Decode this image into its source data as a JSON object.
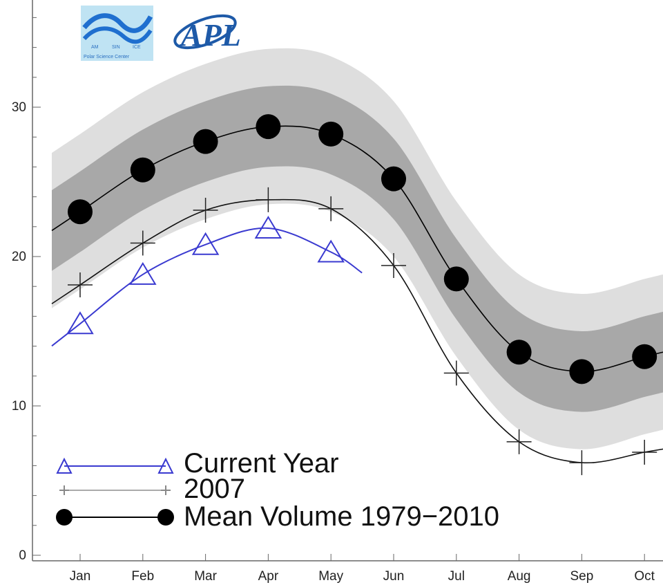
{
  "chart_data": {
    "type": "line",
    "categories": [
      "Jan",
      "Feb",
      "Mar",
      "Apr",
      "May",
      "Jun",
      "Jul",
      "Aug",
      "Sep",
      "Oct"
    ],
    "y_ticks": [
      0,
      10,
      20,
      30
    ],
    "ylim": [
      0,
      37
    ],
    "series": [
      {
        "name": "Current Year",
        "values": [
          15.5,
          18.8,
          20.8,
          21.9,
          20.3,
          null,
          null,
          null,
          null,
          null
        ],
        "color": "#3a3ad0",
        "marker": "triangle"
      },
      {
        "name": "2007",
        "values": [
          18.1,
          20.9,
          23.1,
          23.8,
          23.2,
          19.4,
          12.2,
          7.6,
          6.2,
          6.9
        ],
        "color": "#111111",
        "marker": "plus"
      },
      {
        "name": "Mean Volume 1979-2010",
        "values": [
          23.0,
          25.8,
          27.7,
          28.7,
          28.2,
          25.2,
          18.5,
          13.6,
          12.3,
          13.3
        ],
        "color": "#000000",
        "marker": "circle"
      }
    ],
    "bands": {
      "inner_std_dev": 2.7,
      "outer_std_dev": 5.2,
      "inner_color": "#a8a8a8",
      "outer_color": "#dedede"
    },
    "legend": {
      "position": "bottom-left",
      "entries": [
        "Current Year",
        "2007",
        "Mean Volume 1979−2010"
      ]
    },
    "logos": {
      "left_caption": "Polar Science Center",
      "left_subtext": [
        "AM",
        "SIN",
        "ICE"
      ],
      "right_letters": "APL"
    }
  }
}
